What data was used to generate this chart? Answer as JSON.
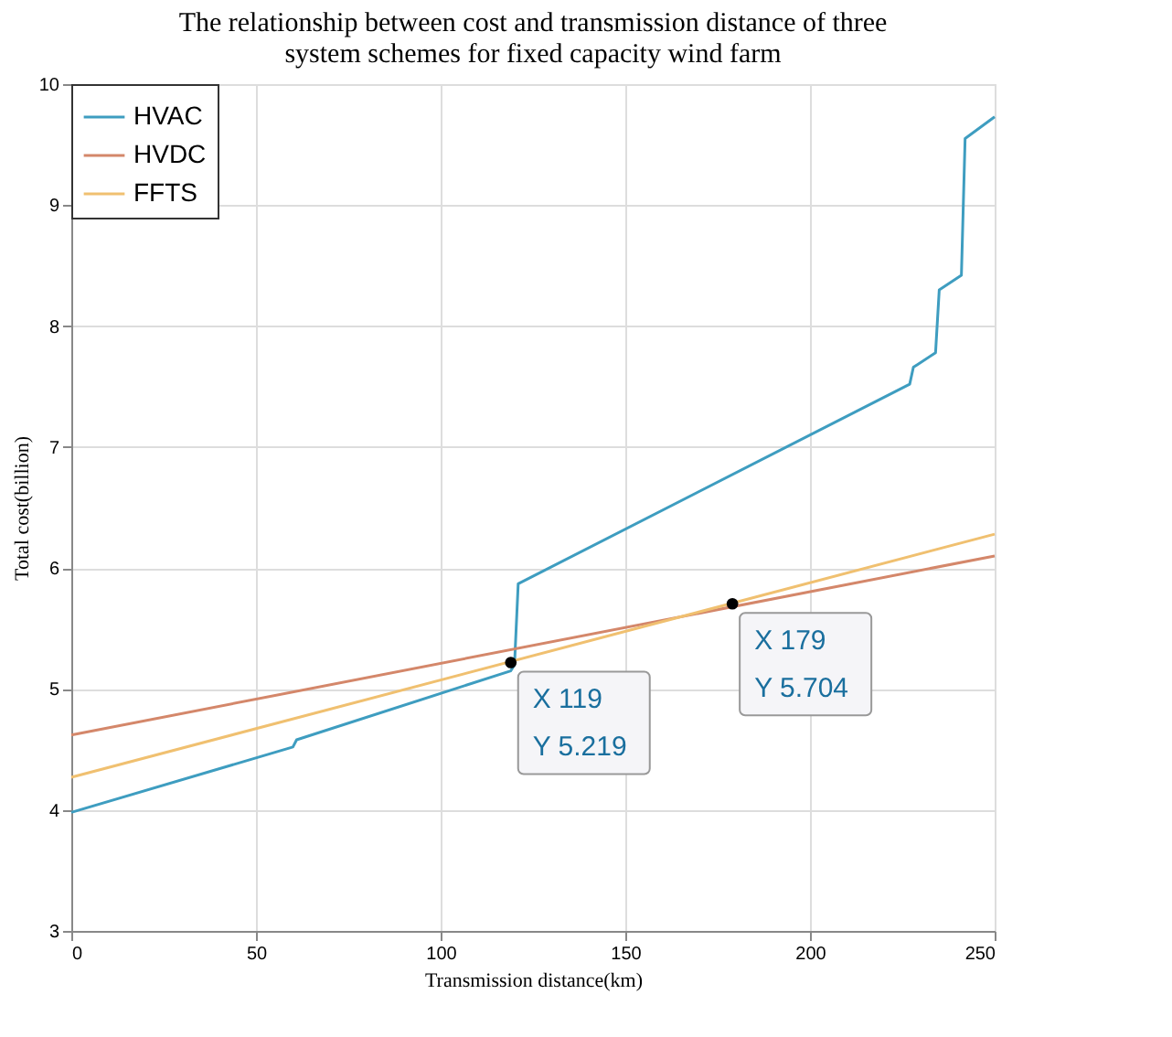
{
  "chart_data": {
    "type": "line",
    "title": [
      "The relationship between cost and transmission distance of three",
      "system schemes for fixed capacity wind farm"
    ],
    "xlabel": "Transmission distance(km)",
    "ylabel": "Total cost(billion)",
    "series": [
      {
        "name": "HVAC",
        "color": "#3e9dc0",
        "x": [
          0,
          60,
          61,
          119,
          120,
          121,
          227,
          228,
          229,
          234,
          235,
          241,
          242,
          250
        ],
        "values": [
          3.98,
          4.52,
          4.58,
          5.15,
          5.2,
          5.87,
          7.52,
          7.66,
          7.68,
          7.78,
          8.3,
          8.42,
          9.55,
          9.73
        ]
      },
      {
        "name": "HVDC",
        "color": "#d4876a",
        "x": [
          0,
          250
        ],
        "values": [
          4.62,
          6.1
        ]
      },
      {
        "name": "FFTS",
        "color": "#f0c070",
        "x": [
          0,
          250
        ],
        "values": [
          4.27,
          6.28
        ]
      },
      {
        "type": "scatter",
        "color": "#000000",
        "marker": "circle",
        "x": [
          119,
          179
        ],
        "values": [
          5.219,
          5.704
        ]
      }
    ],
    "annotations": [
      "X 119",
      "Y 5.219",
      "X 179",
      "Y 5.704"
    ],
    "xlim": [
      0,
      250
    ],
    "xticks": [
      0,
      50,
      100,
      150,
      200,
      250
    ],
    "ylim": [
      3,
      10
    ],
    "yticks": [
      3,
      4,
      5,
      6,
      7,
      8,
      9,
      10
    ],
    "grid": true,
    "legend": "top left",
    "line_style": "solid",
    "marker": "none"
  }
}
